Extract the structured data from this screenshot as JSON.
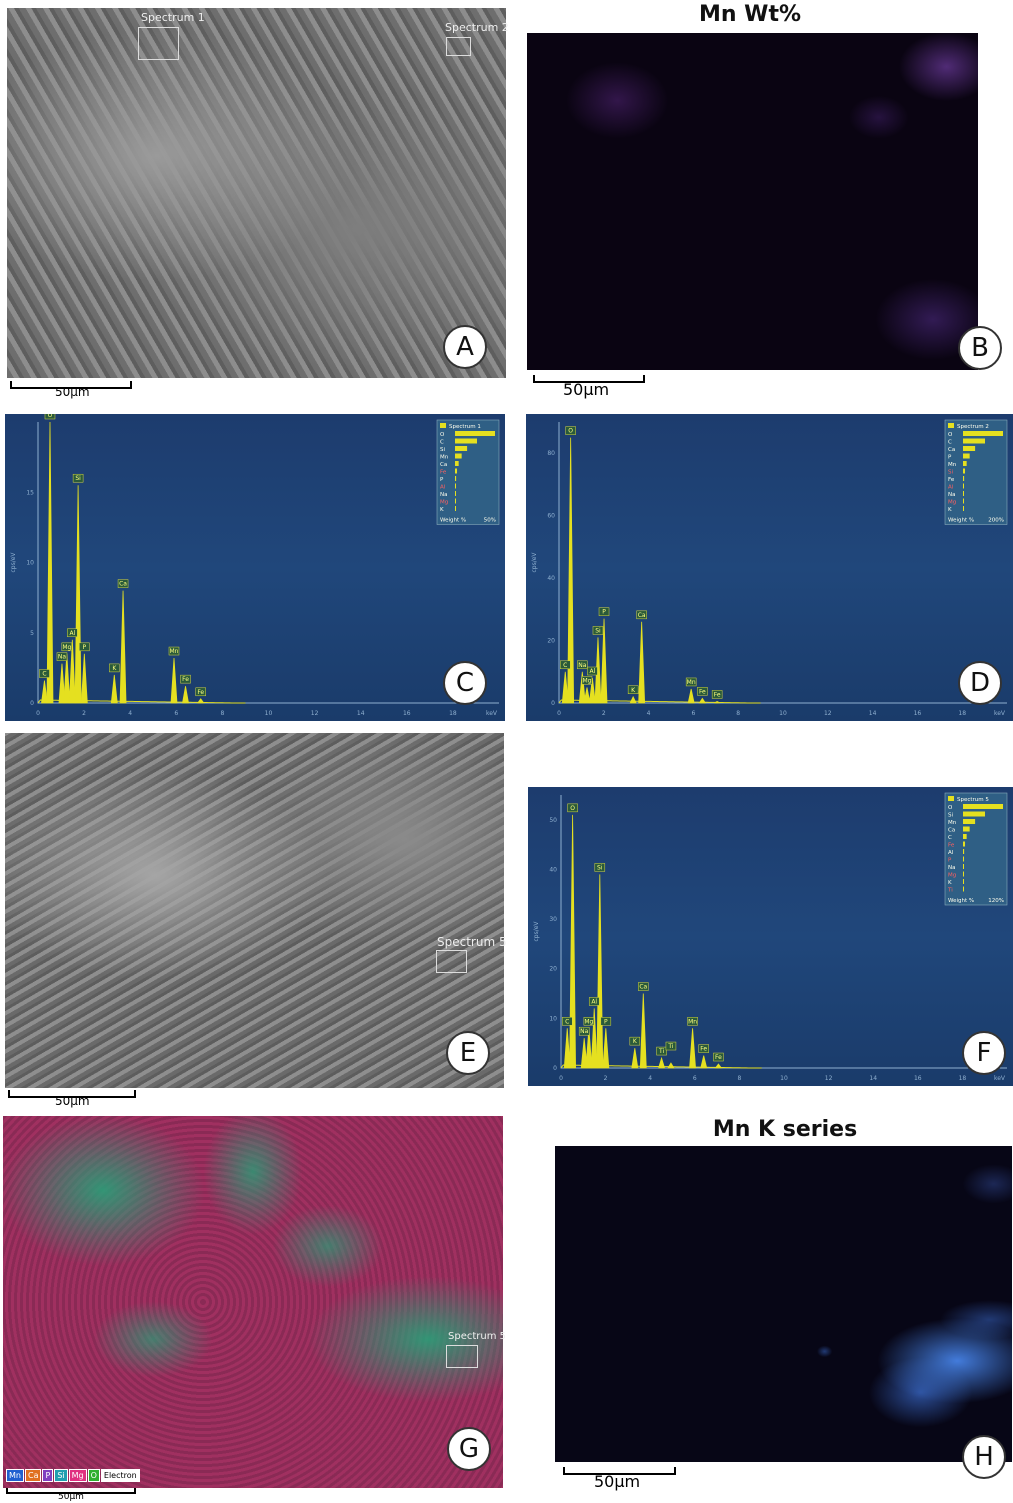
{
  "panelA": {
    "letter": "A",
    "scale": "50µm",
    "roi1": "Spectrum 1",
    "roi2": "Spectrum 2"
  },
  "panelB": {
    "letter": "B",
    "title": "Mn Wt%",
    "scale": "50µm"
  },
  "panelC": {
    "letter": "C",
    "legend_title": "Spectrum 1",
    "legend_elements": [
      "O",
      "C",
      "Si",
      "Mn",
      "Ca",
      "Fe",
      "P",
      "Al",
      "Na",
      "Mg",
      "K"
    ],
    "legend_footer_left": "Weight %",
    "legend_footer_right": "50%",
    "ylabel": "cps/eV",
    "xunit": "keV"
  },
  "panelD": {
    "letter": "D",
    "legend_title": "Spectrum 2",
    "legend_elements": [
      "O",
      "C",
      "Ca",
      "P",
      "Mn",
      "Si",
      "Fe",
      "Al",
      "Na",
      "Mg",
      "K"
    ],
    "legend_footer_left": "Weight %",
    "legend_footer_right": "200%",
    "ylabel": "cps/eV",
    "xunit": "keV"
  },
  "panelE": {
    "letter": "E",
    "scale": "50µm",
    "roi": "Spectrum 5"
  },
  "panelF": {
    "letter": "F",
    "legend_title": "Spectrum 5",
    "legend_elements": [
      "O",
      "Si",
      "Mn",
      "Ca",
      "C",
      "Fe",
      "Al",
      "P",
      "Na",
      "Mg",
      "K",
      "Ti"
    ],
    "legend_footer_left": "Weight %",
    "legend_footer_right": "120%",
    "ylabel": "cps/eV",
    "xunit": "keV"
  },
  "panelG": {
    "letter": "G",
    "scale": "50µm",
    "roi": "Spectrum 5",
    "key": [
      {
        "t": "Mn",
        "c": "#2060d0"
      },
      {
        "t": "Ca",
        "c": "#e07020"
      },
      {
        "t": "P",
        "c": "#8040c0"
      },
      {
        "t": "Si",
        "c": "#20a0b0"
      },
      {
        "t": "Mg",
        "c": "#e03080"
      },
      {
        "t": "O",
        "c": "#30b030"
      },
      {
        "t": "Electron",
        "c": "#ffffff"
      }
    ]
  },
  "panelH": {
    "letter": "H",
    "title": "Mn K series",
    "scale": "50µm"
  },
  "chart_data": [
    {
      "type": "line",
      "panel": "C",
      "series": [
        {
          "name": "Spectrum 1",
          "peaks": [
            {
              "label": "O",
              "x": 0.52,
              "y": 20
            },
            {
              "label": "Si",
              "x": 1.74,
              "y": 15.5
            },
            {
              "label": "Ca",
              "x": 3.69,
              "y": 8
            },
            {
              "label": "Mn",
              "x": 5.9,
              "y": 3.2
            },
            {
              "label": "Al",
              "x": 1.49,
              "y": 4.5
            },
            {
              "label": "Mg",
              "x": 1.25,
              "y": 3.5
            },
            {
              "label": "Na",
              "x": 1.04,
              "y": 2.8
            },
            {
              "label": "P",
              "x": 2.01,
              "y": 3.5
            },
            {
              "label": "K",
              "x": 3.31,
              "y": 2.0
            },
            {
              "label": "C",
              "x": 0.28,
              "y": 1.6
            },
            {
              "label": "Fe",
              "x": 6.4,
              "y": 1.2
            },
            {
              "label": "Fe",
              "x": 7.06,
              "y": 0.3
            }
          ]
        }
      ],
      "xlim": [
        0,
        20
      ],
      "ylim": [
        0,
        20
      ],
      "xticks": [
        0,
        2,
        4,
        6,
        8,
        10,
        12,
        14,
        16,
        18
      ],
      "yticks": [
        0,
        5,
        10,
        15
      ],
      "legend": "top-right"
    },
    {
      "type": "line",
      "panel": "D",
      "series": [
        {
          "name": "Spectrum 2",
          "peaks": [
            {
              "label": "O",
              "x": 0.52,
              "y": 85
            },
            {
              "label": "Ca",
              "x": 3.69,
              "y": 26
            },
            {
              "label": "P",
              "x": 2.01,
              "y": 27
            },
            {
              "label": "Si",
              "x": 1.74,
              "y": 21
            },
            {
              "label": "Na",
              "x": 1.04,
              "y": 10
            },
            {
              "label": "Al",
              "x": 1.49,
              "y": 8
            },
            {
              "label": "Mg",
              "x": 1.25,
              "y": 5
            },
            {
              "label": "C",
              "x": 0.28,
              "y": 10
            },
            {
              "label": "Mn",
              "x": 5.9,
              "y": 4.5
            },
            {
              "label": "K",
              "x": 3.31,
              "y": 2
            },
            {
              "label": "Fe",
              "x": 6.4,
              "y": 1.5
            },
            {
              "label": "Fe",
              "x": 7.06,
              "y": 0.5
            }
          ]
        }
      ],
      "xlim": [
        0,
        20
      ],
      "ylim": [
        0,
        90
      ],
      "xticks": [
        0,
        2,
        4,
        6,
        8,
        10,
        12,
        14,
        16,
        18
      ],
      "yticks": [
        0,
        20,
        40,
        60,
        80
      ],
      "legend": "top-right"
    },
    {
      "type": "line",
      "panel": "F",
      "series": [
        {
          "name": "Spectrum 5",
          "peaks": [
            {
              "label": "O",
              "x": 0.52,
              "y": 51
            },
            {
              "label": "Si",
              "x": 1.74,
              "y": 39
            },
            {
              "label": "Ca",
              "x": 3.69,
              "y": 15
            },
            {
              "label": "Al",
              "x": 1.49,
              "y": 12
            },
            {
              "label": "Mn",
              "x": 5.9,
              "y": 8
            },
            {
              "label": "P",
              "x": 2.01,
              "y": 8
            },
            {
              "label": "Mg",
              "x": 1.25,
              "y": 8
            },
            {
              "label": "Na",
              "x": 1.04,
              "y": 6
            },
            {
              "label": "C",
              "x": 0.28,
              "y": 8
            },
            {
              "label": "K",
              "x": 3.31,
              "y": 4
            },
            {
              "label": "Ti",
              "x": 4.51,
              "y": 2
            },
            {
              "label": "Ti",
              "x": 4.93,
              "y": 1
            },
            {
              "label": "Fe",
              "x": 6.4,
              "y": 2.5
            },
            {
              "label": "Fe",
              "x": 7.06,
              "y": 0.8
            }
          ]
        }
      ],
      "xlim": [
        0,
        20
      ],
      "ylim": [
        0,
        55
      ],
      "xticks": [
        0,
        2,
        4,
        6,
        8,
        10,
        12,
        14,
        16,
        18
      ],
      "yticks": [
        0,
        10,
        20,
        30,
        40,
        50
      ],
      "legend": "top-right"
    }
  ]
}
